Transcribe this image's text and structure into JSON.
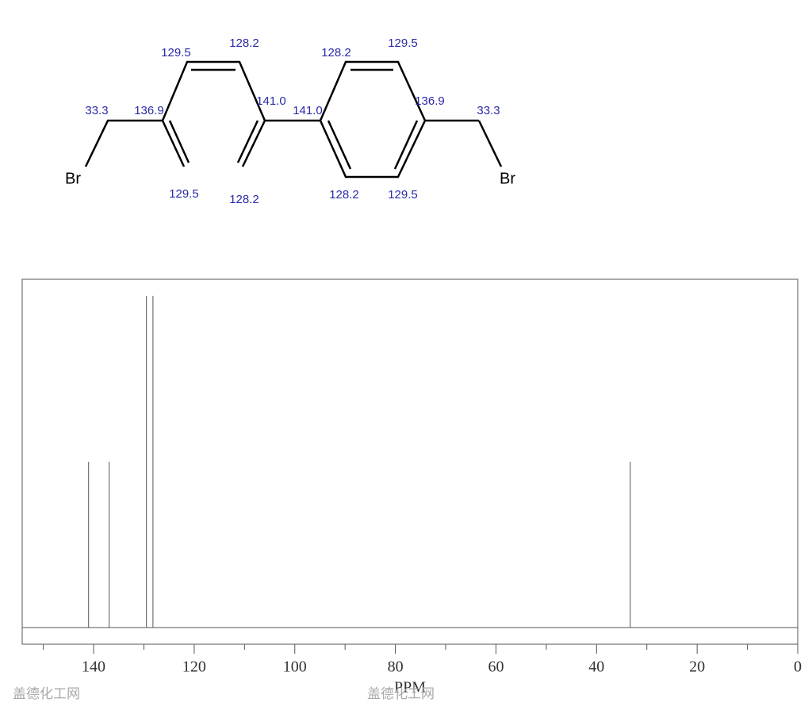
{
  "structure": {
    "labels": [
      "33.3",
      "136.9",
      "129.5",
      "128.2",
      "141.0",
      "141.0",
      "128.2",
      "129.5",
      "136.9",
      "33.3",
      "128.2",
      "129.5",
      "129.5",
      "128.2"
    ],
    "atoms": [
      "Br",
      "Br"
    ]
  },
  "chart_data": {
    "type": "stem",
    "xlabel": "PPM",
    "x": [
      141.0,
      136.9,
      129.5,
      128.2,
      33.3
    ],
    "values": [
      50,
      50,
      100,
      100,
      50
    ],
    "color": "#555555",
    "xlim": [
      154.2,
      0
    ],
    "ylim": [
      0,
      105
    ],
    "xticks": [
      140,
      120,
      100,
      80,
      60,
      40,
      20,
      0
    ],
    "xminorticks": [
      150,
      130,
      110,
      90,
      70,
      50,
      30,
      10
    ]
  },
  "watermark": [
    "盖德化工网",
    "盖德化工网"
  ]
}
